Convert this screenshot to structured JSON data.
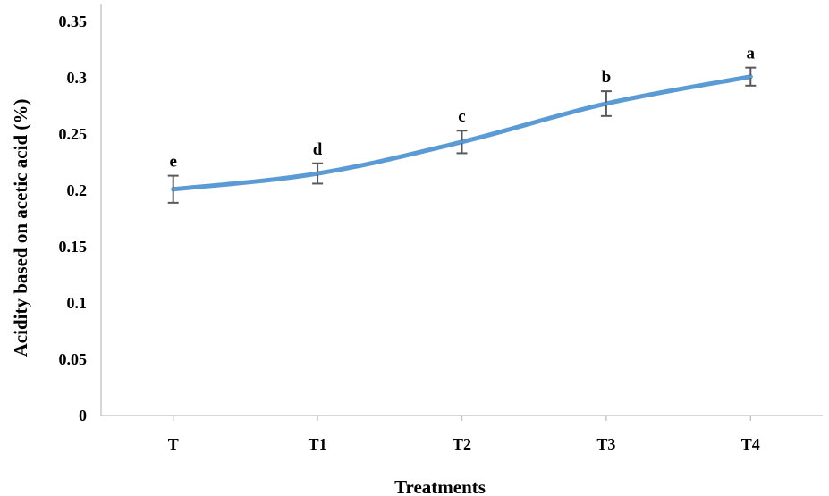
{
  "chart_data": {
    "type": "line",
    "title": "",
    "xlabel": "Treatments",
    "ylabel": "Acidity based on acetic acid (%)",
    "categories": [
      "T",
      "T1",
      "T2",
      "T3",
      "T4"
    ],
    "ylim": [
      0,
      0.35
    ],
    "yticks": [
      0,
      0.05,
      0.1,
      0.15,
      0.2,
      0.25,
      0.3,
      0.35
    ],
    "ytick_labels": [
      "0",
      "0.05",
      "0.1",
      "0.15",
      "0.2",
      "0.25",
      "0.3",
      "0.35"
    ],
    "grid": false,
    "legend": "none",
    "series_color": "#5b9bd5",
    "errorbar_color": "#595959",
    "series": [
      {
        "values": [
          0.201,
          0.215,
          0.243,
          0.277,
          0.301
        ],
        "errors": [
          0.012,
          0.009,
          0.01,
          0.011,
          0.008
        ],
        "significance_labels": [
          "e",
          "d",
          "c",
          "b",
          "a"
        ]
      }
    ]
  }
}
